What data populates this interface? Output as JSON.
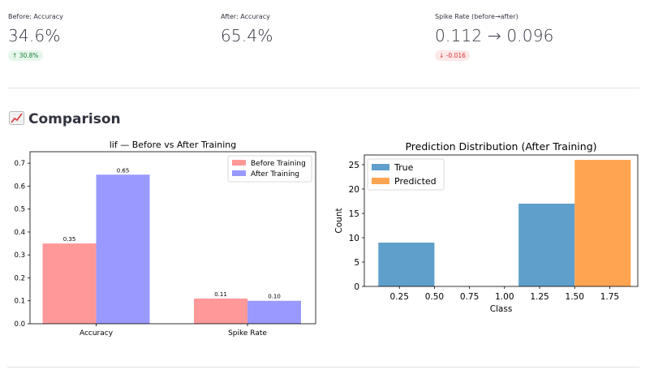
{
  "metrics": [
    {
      "label": "Before: Accuracy",
      "value": "34.6%",
      "delta": "30.8%",
      "delta_direction": "up",
      "delta_color": "#198039"
    },
    {
      "label": "After: Accuracy",
      "value": "65.4%"
    },
    {
      "label": "Spike Rate (before→after)",
      "value": "0.112 → 0.096",
      "delta": "-0.016",
      "delta_direction": "down",
      "delta_color": "#d63232"
    }
  ],
  "section": {
    "title": "Comparison",
    "icon": "chart-increasing-icon"
  },
  "chart_data": [
    {
      "type": "bar",
      "title": "lif — Before vs After Training",
      "categories": [
        "Accuracy",
        "Spike Rate"
      ],
      "series": [
        {
          "name": "Before Training",
          "values": [
            0.35,
            0.11
          ],
          "labels": [
            "0.35",
            "0.11"
          ],
          "color": "#ff9999"
        },
        {
          "name": "After Training",
          "values": [
            0.65,
            0.1
          ],
          "labels": [
            "0.65",
            "0.10"
          ],
          "color": "#9999ff"
        }
      ],
      "ylim": [
        0,
        0.75
      ],
      "yticks": [
        "0.0",
        "0.1",
        "0.2",
        "0.3",
        "0.4",
        "0.5",
        "0.6",
        "0.7"
      ],
      "legend": "top-right",
      "grid": false
    },
    {
      "type": "bar",
      "title": "Prediction Distribution (After Training)",
      "xlabel": "Class",
      "ylabel": "Count",
      "series": [
        {
          "name": "True",
          "color": "#5f9fcc",
          "bins": [
            {
              "x0": 0.1,
              "x1": 0.5,
              "count": 9
            },
            {
              "x0": 1.1,
              "x1": 1.5,
              "count": 17
            }
          ]
        },
        {
          "name": "Predicted",
          "color": "#ffa552",
          "bins": [
            {
              "x0": 1.5,
              "x1": 1.9,
              "count": 26
            }
          ]
        }
      ],
      "xlim": [
        0,
        1.95
      ],
      "ylim": [
        0,
        27
      ],
      "xticks": [
        "0.25",
        "0.50",
        "0.75",
        "1.00",
        "1.25",
        "1.50",
        "1.75"
      ],
      "yticks": [
        "0",
        "5",
        "10",
        "15",
        "20",
        "25"
      ],
      "legend": "top-left",
      "grid": false
    }
  ]
}
